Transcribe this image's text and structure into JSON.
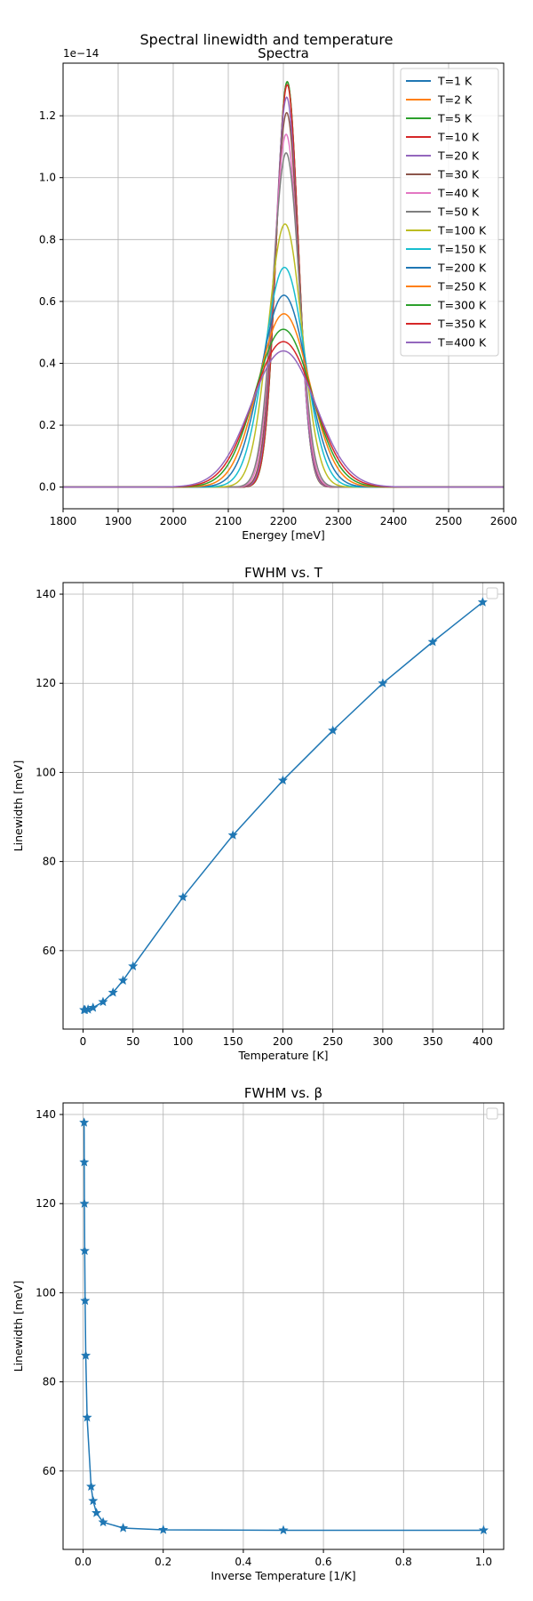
{
  "figure_title": "Spectral linewidth and temperature",
  "chart_data": [
    {
      "type": "line",
      "title": "Spectra",
      "xlabel": "Energey [meV]",
      "ylabel": "",
      "offset_text": "1e−14",
      "xlim": [
        1800,
        2600
      ],
      "ylim": [
        -0.07,
        1.37
      ],
      "xticks": [
        1800,
        1900,
        2000,
        2100,
        2200,
        2300,
        2400,
        2500,
        2600
      ],
      "yticks": [
        0.0,
        0.2,
        0.4,
        0.6,
        0.8,
        1.0,
        1.2
      ],
      "grid": true,
      "legend": "top-right",
      "series": [
        {
          "name": "T=1 K",
          "peak": 1.31,
          "fwhm": 46.7,
          "center": 2207,
          "color": "#1f77b4"
        },
        {
          "name": "T=2 K",
          "peak": 1.31,
          "fwhm": 46.7,
          "center": 2207,
          "color": "#ff7f0e"
        },
        {
          "name": "T=5 K",
          "peak": 1.31,
          "fwhm": 46.8,
          "center": 2207,
          "color": "#2ca02c"
        },
        {
          "name": "T=10 K",
          "peak": 1.3,
          "fwhm": 47.2,
          "center": 2207,
          "color": "#d62728"
        },
        {
          "name": "T=20 K",
          "peak": 1.26,
          "fwhm": 48.5,
          "center": 2206,
          "color": "#9467bd"
        },
        {
          "name": "T=30 K",
          "peak": 1.21,
          "fwhm": 50.6,
          "center": 2206,
          "color": "#8c564b"
        },
        {
          "name": "T=40 K",
          "peak": 1.14,
          "fwhm": 53.3,
          "center": 2205,
          "color": "#e377c2"
        },
        {
          "name": "T=50 K",
          "peak": 1.08,
          "fwhm": 56.5,
          "center": 2205,
          "color": "#7f7f7f"
        },
        {
          "name": "T=100 K",
          "peak": 0.85,
          "fwhm": 72.0,
          "center": 2203,
          "color": "#bcbd22"
        },
        {
          "name": "T=150 K",
          "peak": 0.71,
          "fwhm": 85.9,
          "center": 2202,
          "color": "#17becf"
        },
        {
          "name": "T=200 K",
          "peak": 0.62,
          "fwhm": 98.2,
          "center": 2201,
          "color": "#1f77b4"
        },
        {
          "name": "T=250 K",
          "peak": 0.56,
          "fwhm": 109.4,
          "center": 2201,
          "color": "#ff7f0e"
        },
        {
          "name": "T=300 K",
          "peak": 0.51,
          "fwhm": 120.0,
          "center": 2200,
          "color": "#2ca02c"
        },
        {
          "name": "T=350 K",
          "peak": 0.47,
          "fwhm": 129.3,
          "center": 2200,
          "color": "#d62728"
        },
        {
          "name": "T=400 K",
          "peak": 0.44,
          "fwhm": 138.2,
          "center": 2200,
          "color": "#9467bd"
        }
      ]
    },
    {
      "type": "line",
      "title": "FWHM vs. T",
      "xlabel": "Temperature [K]",
      "ylabel": "Linewidth [meV]",
      "xlim": [
        -20,
        421
      ],
      "ylim": [
        42.4,
        142.6
      ],
      "xticks": [
        0,
        50,
        100,
        150,
        200,
        250,
        300,
        350,
        400
      ],
      "yticks": [
        60,
        80,
        100,
        120,
        140
      ],
      "grid": true,
      "legend": "top-right",
      "series": [
        {
          "name": "",
          "color": "#1f77b4",
          "marker": "star",
          "x": [
            1,
            2,
            5,
            10,
            20,
            30,
            40,
            50,
            100,
            150,
            200,
            250,
            300,
            350,
            400
          ],
          "y": [
            46.7,
            46.7,
            46.8,
            47.2,
            48.5,
            50.6,
            53.3,
            56.5,
            72.0,
            85.9,
            98.2,
            109.4,
            120.0,
            129.3,
            138.2
          ]
        }
      ]
    },
    {
      "type": "line",
      "title": "FWHM vs. β",
      "xlabel": "Inverse Temperature [1/K]",
      "ylabel": "Linewidth [meV]",
      "xlim": [
        -0.05,
        1.05
      ],
      "ylim": [
        42.4,
        142.6
      ],
      "xticks": [
        0.0,
        0.2,
        0.4,
        0.6,
        0.8,
        1.0
      ],
      "yticks": [
        60,
        80,
        100,
        120,
        140
      ],
      "grid": true,
      "legend": "top-right",
      "series": [
        {
          "name": "",
          "color": "#1f77b4",
          "marker": "star",
          "x": [
            1.0,
            0.5,
            0.2,
            0.1,
            0.05,
            0.0333,
            0.025,
            0.02,
            0.01,
            0.00667,
            0.005,
            0.004,
            0.00333,
            0.00286,
            0.0025
          ],
          "y": [
            46.7,
            46.7,
            46.8,
            47.2,
            48.5,
            50.6,
            53.3,
            56.5,
            72.0,
            85.9,
            98.2,
            109.4,
            120.0,
            129.3,
            138.2
          ]
        }
      ]
    }
  ]
}
